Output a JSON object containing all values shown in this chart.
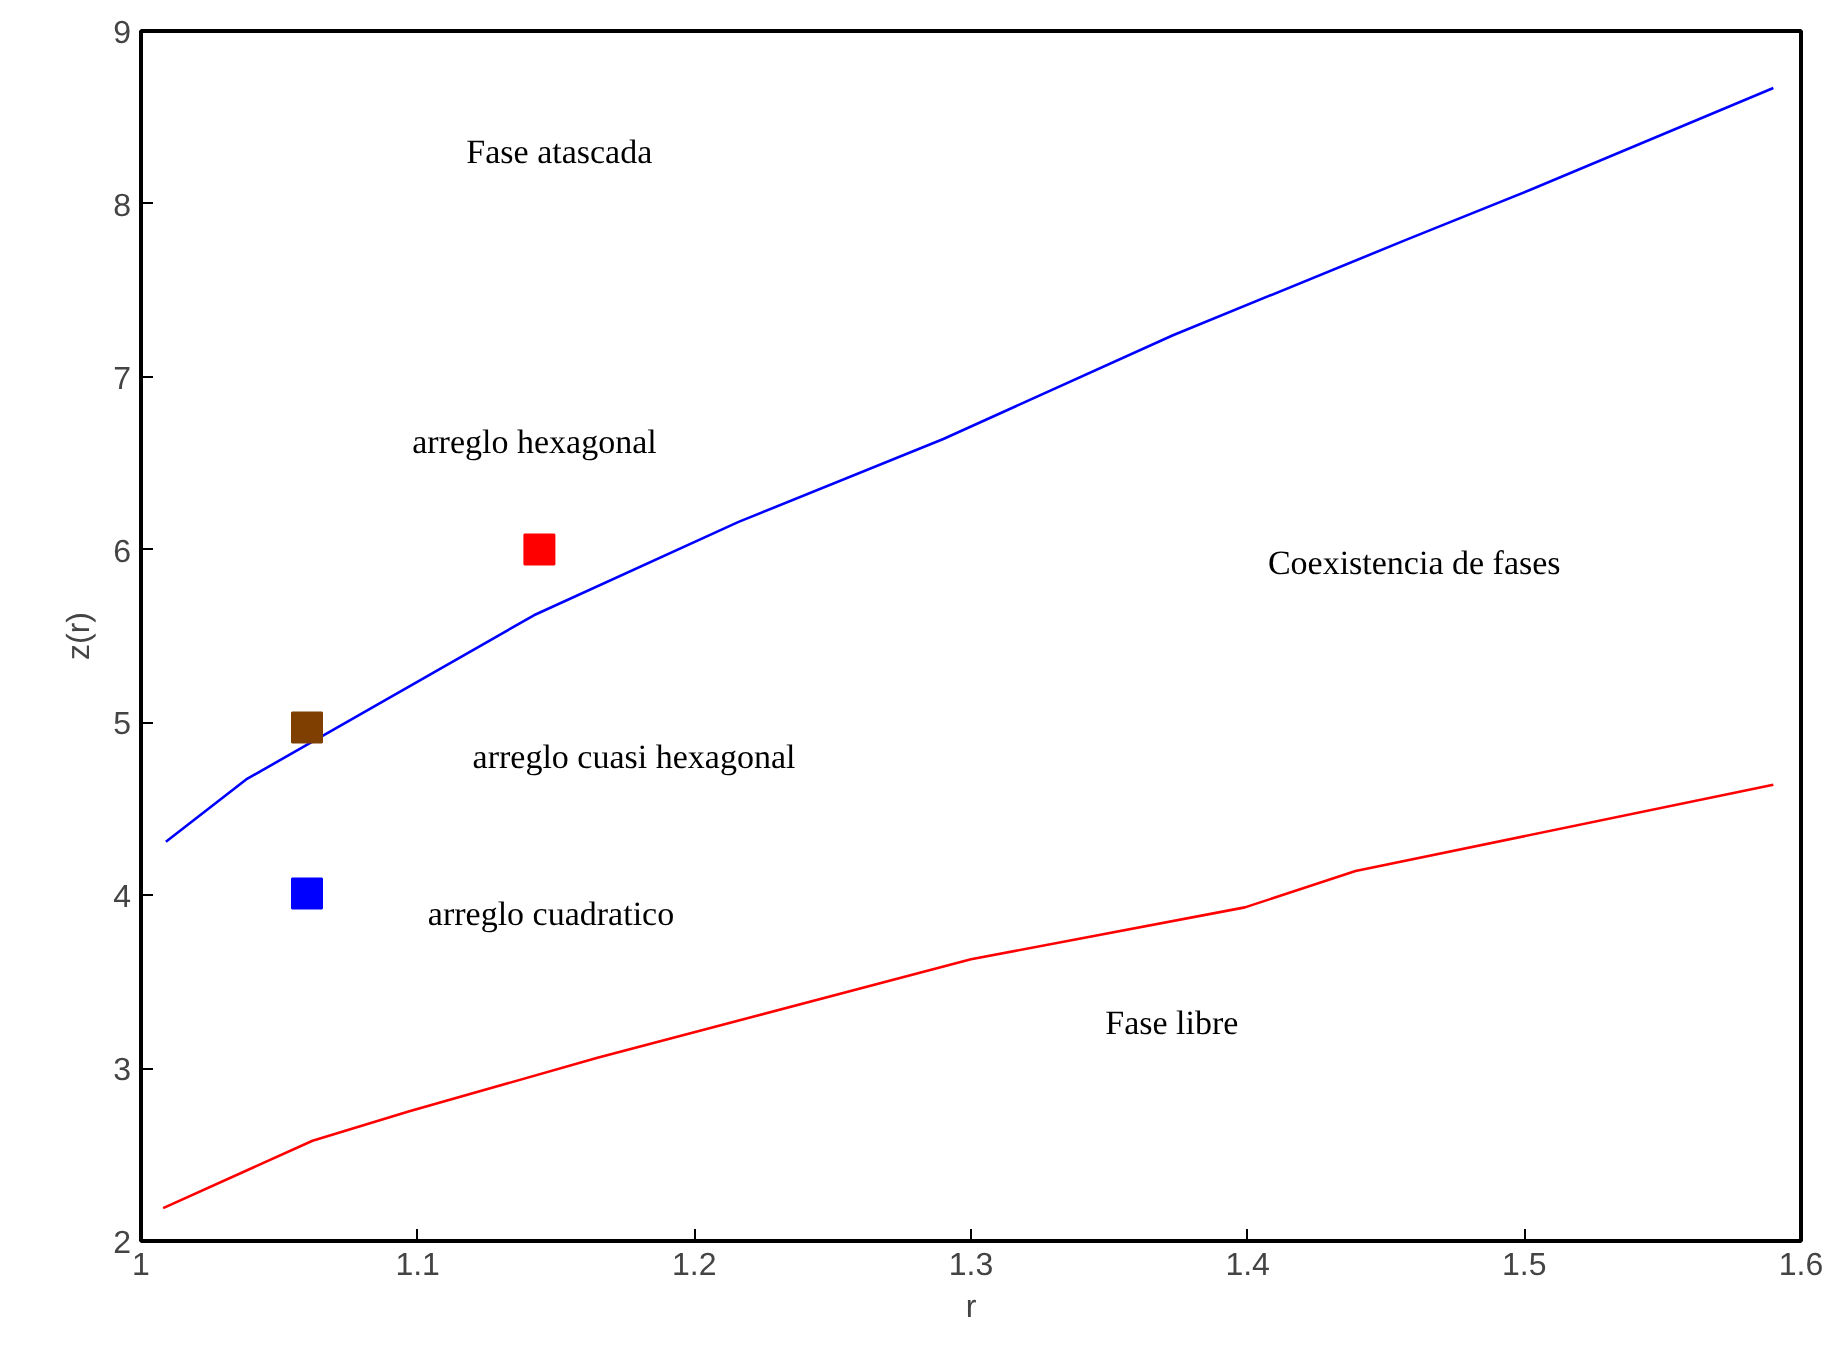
{
  "chart_data": {
    "type": "line",
    "xlabel": "r",
    "ylabel": "z(r)",
    "xlim": [
      1.0,
      1.6
    ],
    "xticks": [
      1,
      1.1,
      1.2,
      1.3,
      1.4,
      1.5,
      1.6
    ],
    "ylim": [
      2,
      9
    ],
    "yticks": [
      2,
      3,
      4,
      5,
      6,
      7,
      8,
      9
    ],
    "grid": false,
    "series": [
      {
        "color": "#0000ff",
        "x": [
          1.009,
          1.038,
          1.142,
          1.216,
          1.29,
          1.373,
          1.457,
          1.502,
          1.59
        ],
        "values": [
          4.31,
          4.67,
          5.62,
          6.16,
          6.64,
          7.24,
          7.79,
          8.08,
          8.67
        ]
      },
      {
        "color": "#ff0000",
        "x": [
          1.008,
          1.062,
          1.097,
          1.165,
          1.3,
          1.399,
          1.439,
          1.59
        ],
        "values": [
          2.19,
          2.58,
          2.75,
          3.06,
          3.63,
          3.93,
          4.14,
          4.64
        ]
      },
      {
        "type": "scatter",
        "marker": "square",
        "color": "#ff0000",
        "x": [
          1.144
        ],
        "values": [
          6.0
        ]
      },
      {
        "type": "scatter",
        "marker": "square",
        "color": "#7f3f00",
        "x": [
          1.06
        ],
        "values": [
          4.97
        ]
      },
      {
        "type": "scatter",
        "marker": "square",
        "color": "#0000ff",
        "x": [
          1.06
        ],
        "values": [
          4.01
        ]
      }
    ],
    "annotations": [
      "Fase atascada",
      "arreglo hexagonal",
      "arreglo cuasi hexagonal",
      "arreglo cuadratico",
      "Coexistencia de fases",
      "Fase libre"
    ]
  }
}
